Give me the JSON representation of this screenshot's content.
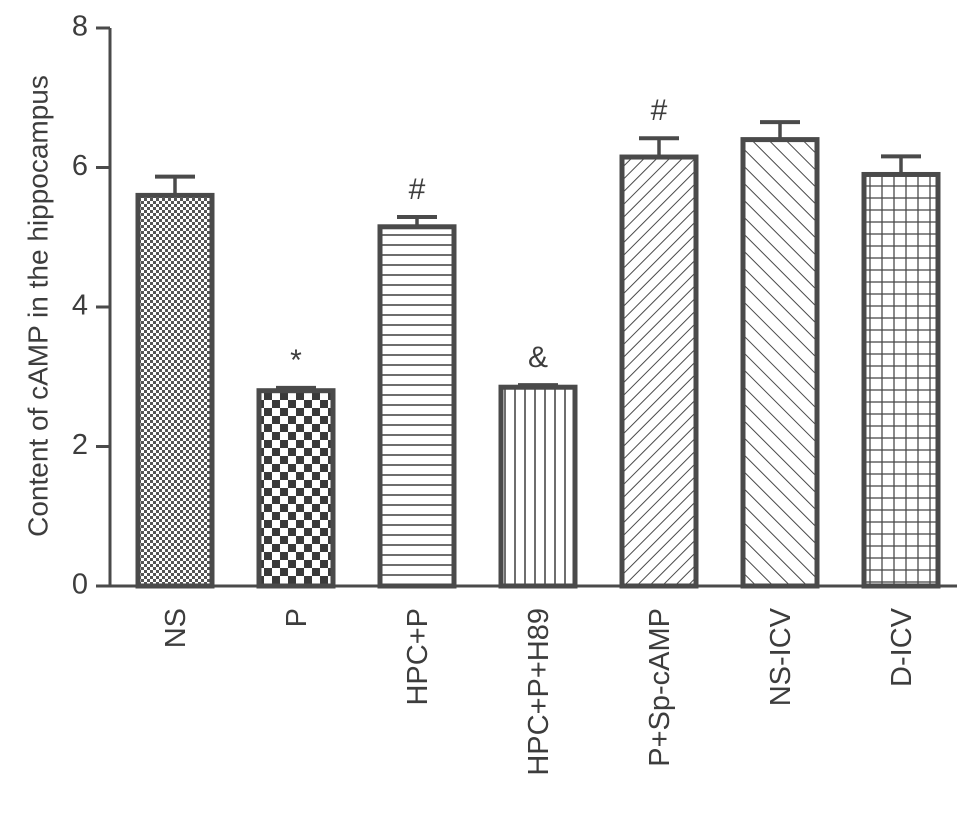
{
  "chart_data": {
    "type": "bar",
    "title": "",
    "xlabel": "",
    "ylabel": "Content of cAMP in the hippocampus",
    "ylim": [
      0,
      8
    ],
    "yticks": [
      0,
      2,
      4,
      6,
      8
    ],
    "grid": false,
    "categories": [
      "NS",
      "P",
      "HPC+P",
      "HPC+P+H89",
      "P+Sp-cAMP",
      "NS-ICV",
      "D-ICV"
    ],
    "values": [
      5.6,
      2.8,
      5.15,
      2.85,
      6.15,
      6.4,
      5.9
    ],
    "errors": [
      0.27,
      0.04,
      0.14,
      0.03,
      0.27,
      0.25,
      0.26
    ],
    "annotations": [
      "",
      "*",
      "#",
      "&",
      "#",
      "",
      ""
    ],
    "patterns": [
      "fine-dots",
      "checkerboard",
      "horizontal-lines",
      "vertical-lines",
      "diagonal-lines-fine",
      "diagonal-lines-wide",
      "grid"
    ],
    "bar_color": "#4a4a4a"
  }
}
